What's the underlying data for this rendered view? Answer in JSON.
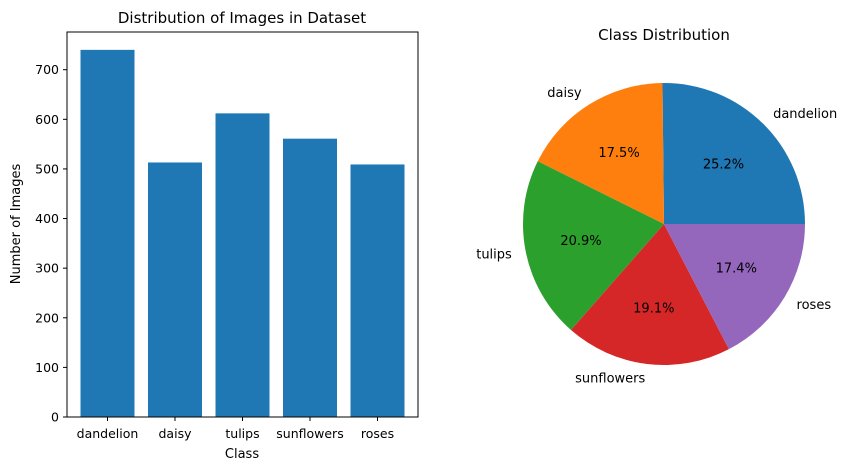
{
  "chart_data": [
    {
      "type": "bar",
      "title": "Distribution of Images in Dataset",
      "xlabel": "Class",
      "ylabel": "Number of Images",
      "categories": [
        "dandelion",
        "daisy",
        "tulips",
        "sunflowers",
        "roses"
      ],
      "values": [
        740,
        513,
        612,
        561,
        509
      ],
      "ylim": [
        0,
        776
      ],
      "yticks": [
        0,
        100,
        200,
        300,
        400,
        500,
        600,
        700
      ],
      "ytick_labels": [
        "0",
        "100",
        "200",
        "300",
        "400",
        "500",
        "600",
        "700"
      ],
      "color": "#1f77b4",
      "grid": false
    },
    {
      "type": "pie",
      "title": "Class Distribution",
      "labels": [
        "dandelion",
        "daisy",
        "tulips",
        "sunflowers",
        "roses"
      ],
      "percent_labels": [
        "25.2%",
        "17.5%",
        "20.9%",
        "19.1%",
        "17.4%"
      ],
      "values": [
        25.2,
        17.5,
        20.9,
        19.1,
        17.4
      ],
      "colors": [
        "#1f77b4",
        "#ff7f0e",
        "#2ca02c",
        "#d62728",
        "#9467bd"
      ]
    }
  ]
}
